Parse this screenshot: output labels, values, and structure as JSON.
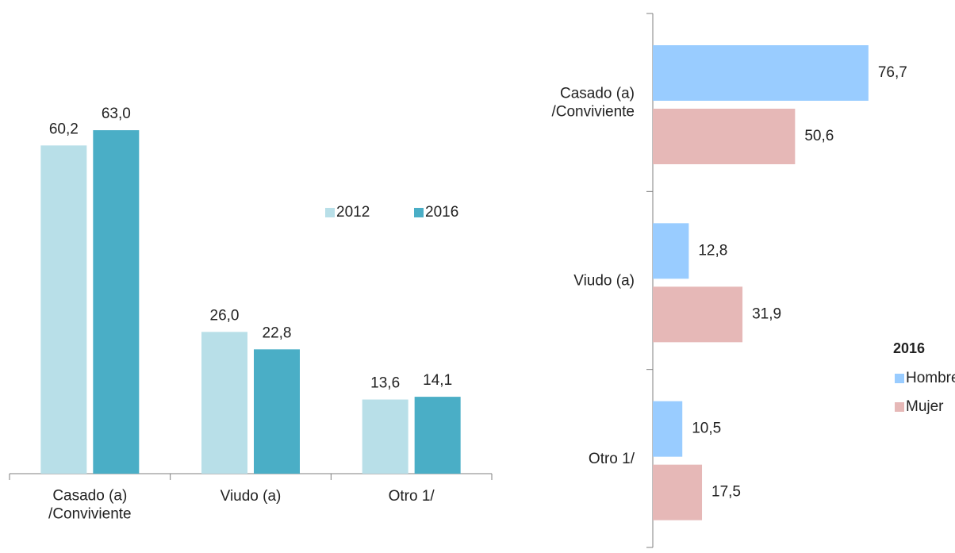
{
  "chart_data": [
    {
      "type": "bar",
      "orientation": "vertical",
      "categories": [
        "Casado (a)\n/Conviviente",
        "Viudo (a)",
        "Otro 1/"
      ],
      "series": [
        {
          "name": "2012",
          "color": "#b8dfe8",
          "values": [
            60.2,
            26.0,
            13.6
          ],
          "value_labels": [
            "60,2",
            "26,0",
            "13,6"
          ]
        },
        {
          "name": "2016",
          "color": "#4aaec6",
          "values": [
            63.0,
            22.8,
            14.1
          ],
          "value_labels": [
            "63,0",
            "22,8",
            "14,1"
          ]
        }
      ],
      "ylim": [
        0,
        70
      ],
      "legend": "right"
    },
    {
      "type": "bar",
      "orientation": "horizontal",
      "categories": [
        "Casado (a)\n/Conviviente",
        "Viudo (a)",
        "Otro 1/"
      ],
      "legend_title": "2016",
      "series": [
        {
          "name": "Hombre",
          "color": "#99ccff",
          "values": [
            76.7,
            12.8,
            10.5
          ],
          "value_labels": [
            "76,7",
            "12,8",
            "10,5"
          ]
        },
        {
          "name": "Mujer",
          "color": "#e6b8b7",
          "values": [
            50.6,
            31.9,
            17.5
          ],
          "value_labels": [
            "50,6",
            "31,9",
            "17,5"
          ]
        }
      ],
      "xlim": [
        0,
        90
      ],
      "legend": "right"
    }
  ]
}
